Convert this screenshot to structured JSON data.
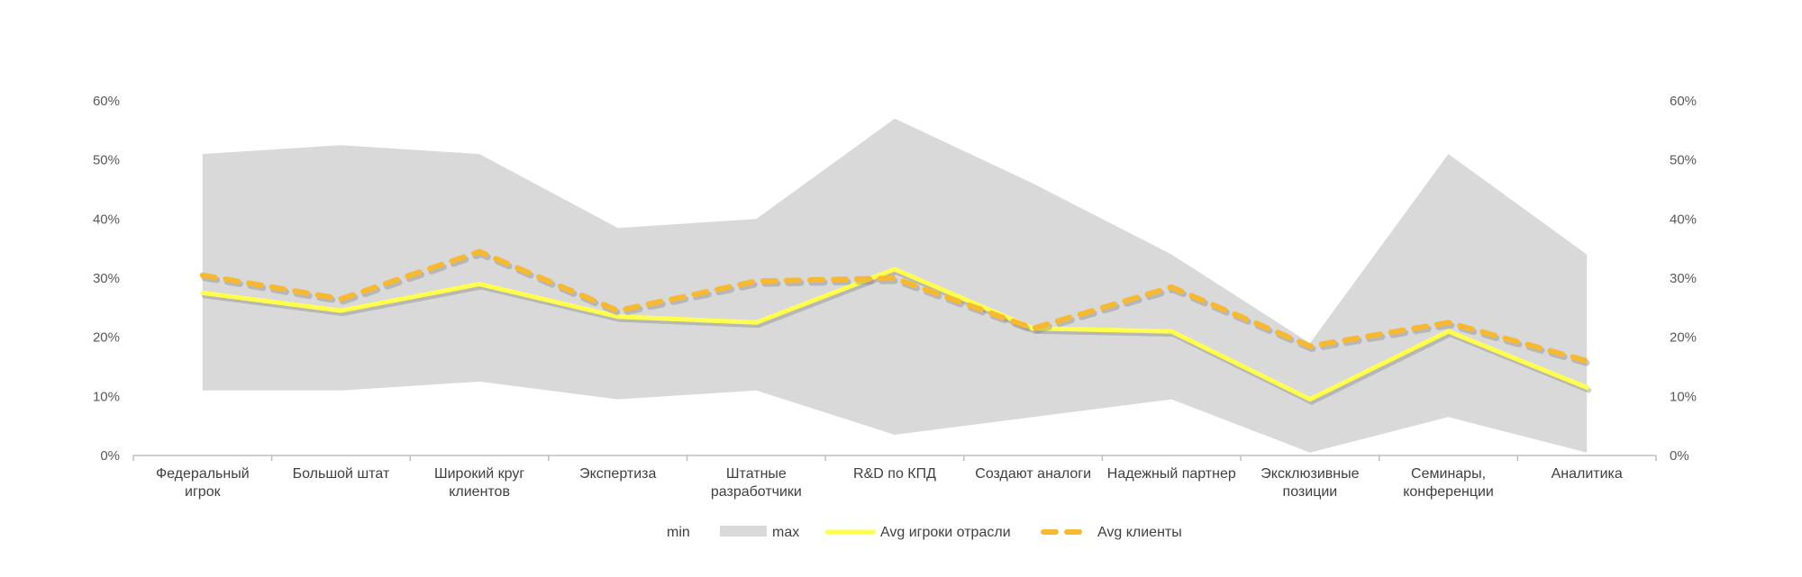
{
  "chart_data": {
    "type": "area",
    "categories": [
      [
        "Федеральный",
        "игрок"
      ],
      [
        "Большой штат"
      ],
      [
        "Широкий круг",
        "клиентов"
      ],
      [
        "Экспертиза"
      ],
      [
        "Штатные",
        "разработчики"
      ],
      [
        "R&D по КПД"
      ],
      [
        "Создают аналоги"
      ],
      [
        "Надежный партнер"
      ],
      [
        "Эксклюзивные",
        "позиции"
      ],
      [
        "Семинары,",
        "конференции"
      ],
      [
        "Аналитика"
      ]
    ],
    "series": [
      {
        "name": "min",
        "kind": "band-lower",
        "color": "#ffffff",
        "values": [
          11,
          11,
          12.5,
          9.5,
          11,
          3.5,
          6.5,
          9.5,
          0.5,
          6.5,
          0.5
        ]
      },
      {
        "name": "max",
        "kind": "band-upper",
        "color": "#d9d9d9",
        "values": [
          51,
          52.5,
          51,
          38.5,
          40,
          57,
          46,
          34,
          19,
          51,
          34
        ]
      },
      {
        "name": "Avg игроки отрасли",
        "kind": "line",
        "color": "#ffff4d",
        "values": [
          27.5,
          24.5,
          29,
          23.5,
          22.5,
          31.5,
          21.5,
          21,
          9.5,
          21,
          11.5
        ]
      },
      {
        "name": "Avg клиенты",
        "kind": "dashed-line",
        "color": "#f8b932",
        "values": [
          30.5,
          26.5,
          34.5,
          24.5,
          29.5,
          30,
          21.5,
          28.5,
          18.5,
          22.5,
          16
        ]
      }
    ],
    "ylim": [
      0,
      60
    ],
    "yticks": [
      "0%",
      "10%",
      "20%",
      "30%",
      "40%",
      "50%",
      "60%"
    ],
    "y_axis": "both sides",
    "grid": false,
    "legend_position": "bottom"
  }
}
